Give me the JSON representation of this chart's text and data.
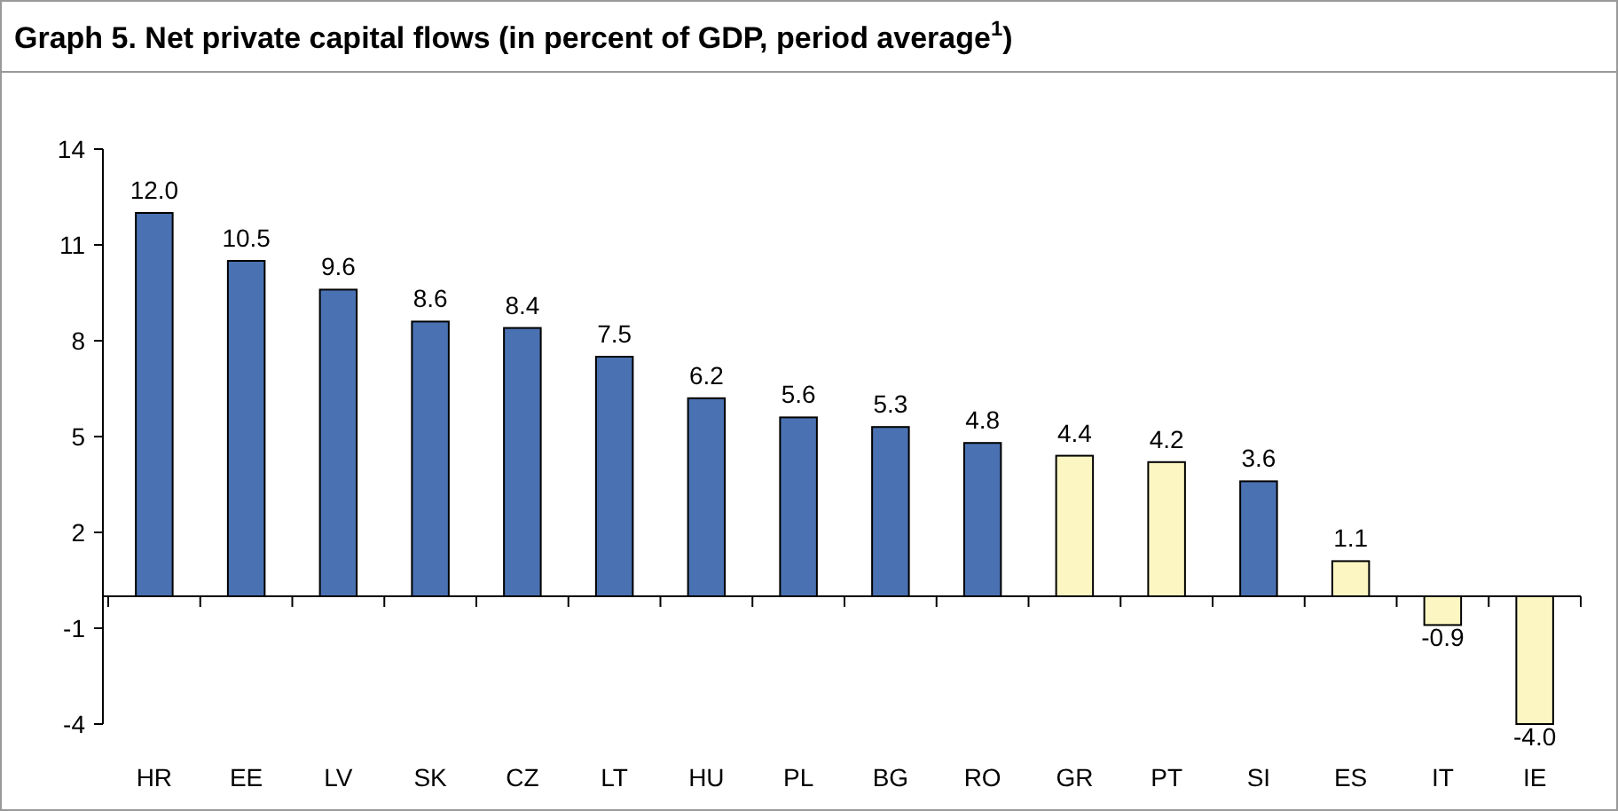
{
  "chart_data": {
    "type": "bar",
    "title": "Graph 5.  Net private capital flows (in percent of GDP, period average$^{1}$)",
    "categories": [
      "HR",
      "EE",
      "LV",
      "SK",
      "CZ",
      "LT",
      "HU",
      "PL",
      "BG",
      "RO",
      "GR",
      "PT",
      "SI",
      "ES",
      "IT",
      "IE"
    ],
    "values": [
      12.0,
      10.5,
      9.6,
      8.6,
      8.4,
      7.5,
      6.2,
      5.6,
      5.3,
      4.8,
      4.4,
      4.2,
      3.6,
      1.1,
      -0.9,
      -4.0
    ],
    "colors": [
      "#4a72b2",
      "#4a72b2",
      "#4a72b2",
      "#4a72b2",
      "#4a72b2",
      "#4a72b2",
      "#4a72b2",
      "#4a72b2",
      "#4a72b2",
      "#4a72b2",
      "#fbf6c2",
      "#fbf6c2",
      "#4a72b2",
      "#fbf6c2",
      "#fbf6c2",
      "#fbf6c2"
    ],
    "value_labels": [
      "12.0",
      "10.5",
      "9.6",
      "8.6",
      "8.4",
      "7.5",
      "6.2",
      "5.6",
      "5.3",
      "4.8",
      "4.4",
      "4.2",
      "3.6",
      "1.1",
      "-0.9",
      "-4.0"
    ],
    "ylim": [
      -4,
      14
    ],
    "yticks": [
      14,
      11,
      8,
      5,
      2,
      -1,
      -4
    ],
    "grid": false
  }
}
